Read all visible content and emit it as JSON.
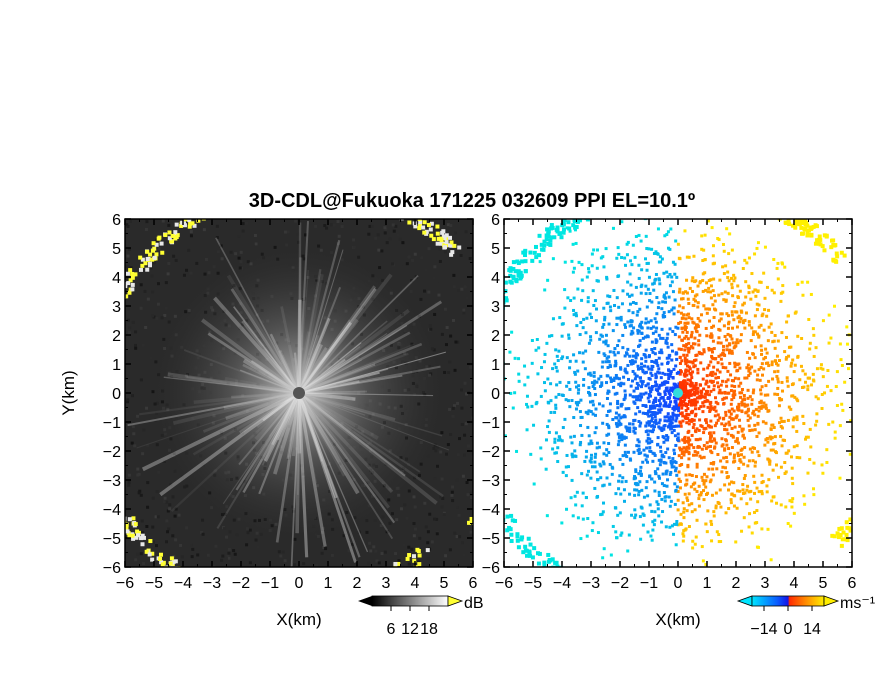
{
  "figure": {
    "title": "3D-CDL@Fukuoka 171225 032609 PPI EL=10.1º"
  },
  "chart_data": [
    {
      "type": "heatmap",
      "panel": "left",
      "quantity": "SNR",
      "xlabel": "X(km)",
      "ylabel": "Y(km)",
      "xlim": [
        -6,
        6
      ],
      "ylim": [
        -6,
        6
      ],
      "xticks": [
        "−6",
        "−5",
        "−4",
        "−3",
        "−2",
        "−1",
        "0",
        "1",
        "2",
        "3",
        "4",
        "5",
        "6"
      ],
      "yticks": [
        "−6",
        "−5",
        "−4",
        "−3",
        "−2",
        "−1",
        "0",
        "1",
        "2",
        "3",
        "4",
        "5",
        "6"
      ],
      "colormap": "grayscale with yellow for high values",
      "background": "#2a2a2a",
      "colorbar": {
        "unit": "dB",
        "tick_labels": [
          "6",
          "12",
          "18"
        ],
        "tick_values": [
          6,
          12,
          18
        ],
        "range": [
          0,
          24
        ],
        "low_color": "#000000",
        "high_color": "#ffffff",
        "over_color": "#ffff33"
      },
      "features": {
        "center_marker_color": "#555555",
        "radial_streaks": true,
        "yellow_ring_echoes": true
      }
    },
    {
      "type": "heatmap",
      "panel": "right",
      "quantity": "Doppler velocity",
      "xlabel": "X(km)",
      "ylabel": "Y(km)",
      "xlim": [
        -6,
        6
      ],
      "ylim": [
        -6,
        6
      ],
      "xticks": [
        "−6",
        "−5",
        "−4",
        "−3",
        "−2",
        "−1",
        "0",
        "1",
        "2",
        "3",
        "4",
        "5",
        "6"
      ],
      "yticks": [
        "−6",
        "−5",
        "−4",
        "−3",
        "−2",
        "−1",
        "0",
        "1",
        "2",
        "3",
        "4",
        "5",
        "6"
      ],
      "colormap": "cyan-blue (negative) to red-orange-yellow (positive)",
      "background": "#ffffff",
      "colorbar": {
        "unit": "ms⁻¹",
        "tick_labels": [
          "−14",
          "0",
          "14"
        ],
        "tick_values": [
          -14,
          0,
          14
        ],
        "range": [
          -21,
          21
        ],
        "colors": [
          "#00e5ff",
          "#0a5cff",
          "#1414e6",
          "#ff2a00",
          "#ff8c00",
          "#ffee00"
        ]
      },
      "features": {
        "center_marker_color": "#33dddd",
        "negative_side": "west",
        "positive_side": "east"
      }
    }
  ]
}
